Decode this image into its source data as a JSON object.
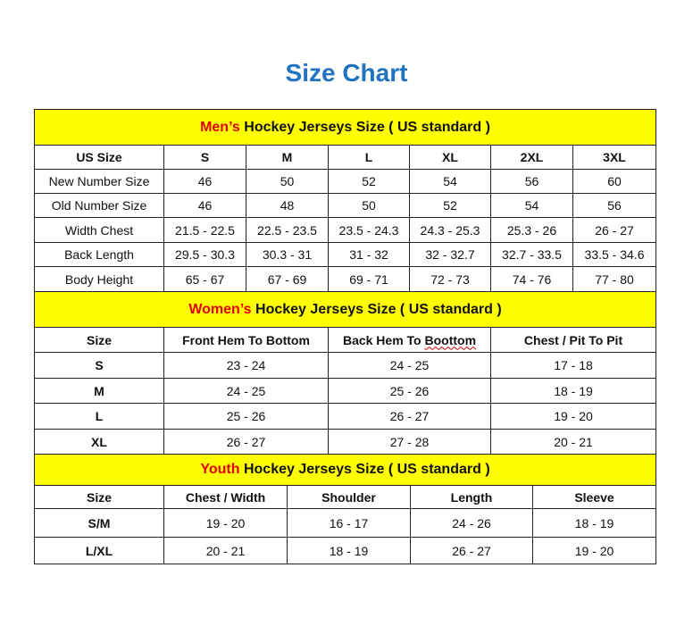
{
  "title": "Size Chart",
  "colors": {
    "title": "#1f73c0",
    "header_bg": "#ffff00",
    "accent_red": "#e00000"
  },
  "men": {
    "title_highlight": "Men’s",
    "title_rest": " Hockey Jerseys Size ( US standard )",
    "columns": [
      "US Size",
      "S",
      "M",
      "L",
      "XL",
      "2XL",
      "3XL"
    ],
    "rows": [
      [
        "New Number Size",
        "46",
        "50",
        "52",
        "54",
        "56",
        "60"
      ],
      [
        "Old Number Size",
        "46",
        "48",
        "50",
        "52",
        "54",
        "56"
      ],
      [
        "Width Chest",
        "21.5 - 22.5",
        "22.5 - 23.5",
        "23.5 - 24.3",
        "24.3 - 25.3",
        "25.3 - 26",
        "26 - 27"
      ],
      [
        "Back Length",
        "29.5 - 30.3",
        "30.3 - 31",
        "31 - 32",
        "32 - 32.7",
        "32.7 - 33.5",
        "33.5 - 34.6"
      ],
      [
        "Body Height",
        "65 - 67",
        "67 - 69",
        "69 - 71",
        "72 - 73",
        "74 - 76",
        "77 - 80"
      ]
    ]
  },
  "women": {
    "title_highlight": "Women’s",
    "title_rest": " Hockey Jerseys Size ( US standard )",
    "columns": [
      "Size",
      "Front Hem To Bottom",
      "Back Hem To ",
      "Chest / Pit To Pit"
    ],
    "misspelled_word": "Boottom",
    "rows": [
      [
        "S",
        "23 - 24",
        "24 - 25",
        "17 - 18"
      ],
      [
        "M",
        "24 - 25",
        "25 - 26",
        "18 - 19"
      ],
      [
        "L",
        "25 - 26",
        "26 - 27",
        "19 - 20"
      ],
      [
        "XL",
        "26 - 27",
        "27 - 28",
        "20 - 21"
      ]
    ]
  },
  "youth": {
    "title_highlight": "Youth",
    "title_rest": " Hockey Jerseys Size ( US standard )",
    "columns": [
      "Size",
      "Chest / Width",
      "Shoulder",
      "Length",
      "Sleeve"
    ],
    "rows": [
      [
        "S/M",
        "19 - 20",
        "16 - 17",
        "24 - 26",
        "18 - 19"
      ],
      [
        "L/XL",
        "20 - 21",
        "18 - 19",
        "26 - 27",
        "19 - 20"
      ]
    ]
  }
}
